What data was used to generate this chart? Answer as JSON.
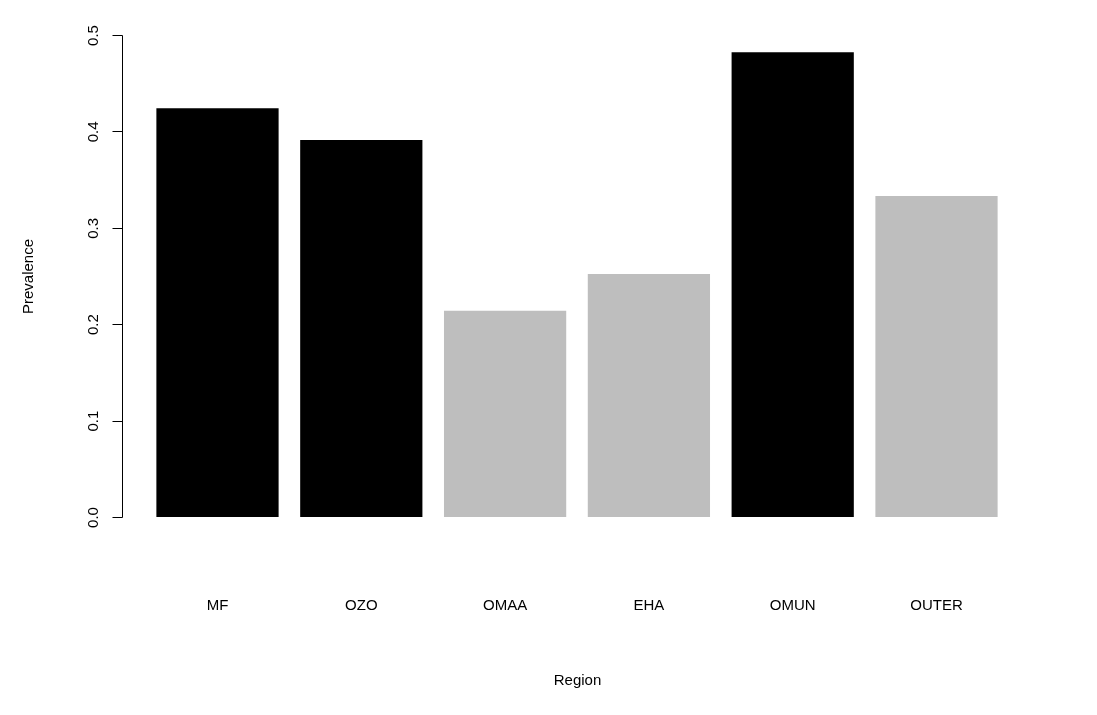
{
  "chart_data": {
    "type": "bar",
    "xlabel": "Region",
    "ylabel": "Prevalence",
    "categories": [
      "MF",
      "OZO",
      "OMAA",
      "EHA",
      "OMUN",
      "OUTER"
    ],
    "values": [
      0.424,
      0.391,
      0.214,
      0.252,
      0.482,
      0.333
    ],
    "colors": [
      "#000000",
      "#000000",
      "#bebebe",
      "#bebebe",
      "#000000",
      "#bebebe"
    ],
    "ylim": [
      0,
      0.5
    ],
    "yticks": [
      {
        "value": 0,
        "label": "0.0"
      },
      {
        "value": 0.1,
        "label": "0.1"
      },
      {
        "value": 0.2,
        "label": "0.2"
      },
      {
        "value": 0.3,
        "label": "0.3"
      },
      {
        "value": 0.4,
        "label": "0.4"
      },
      {
        "value": 0.5,
        "label": "0.5"
      }
    ],
    "grid": false
  }
}
